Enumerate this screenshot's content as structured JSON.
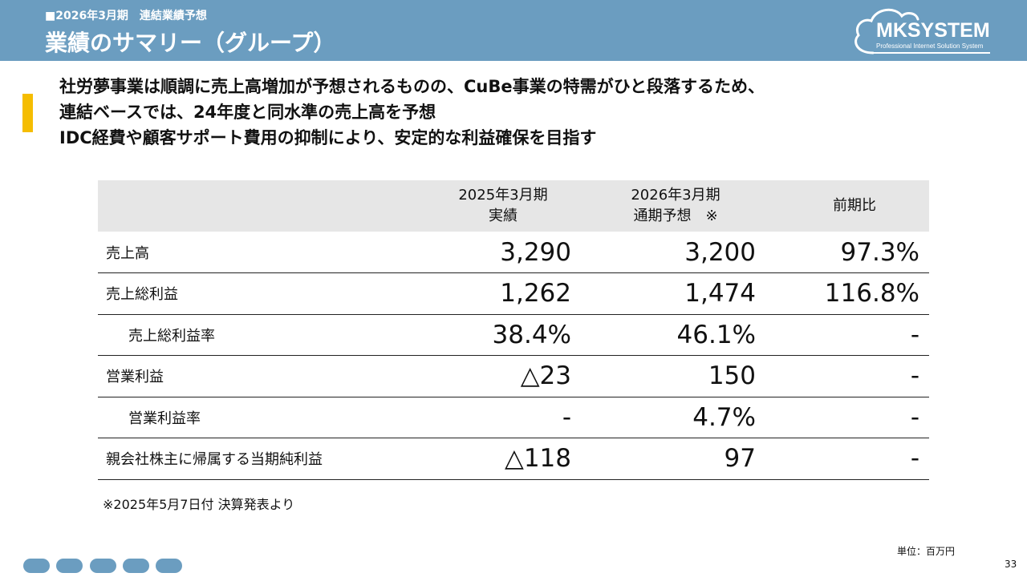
{
  "header": {
    "subtitle": "■2026年3月期　連結業績予想",
    "title": "業績のサマリー（グループ）"
  },
  "logo": {
    "brand": "MKSYSTEM",
    "tagline": "Professional Internet Solution System",
    "color": "#ffffff"
  },
  "lead": {
    "lines": [
      "社労夢事業は順調に売上高増加が予想されるものの、CuBe事業の特需がひと段落するため、",
      "連結ベースでは、24年度と同水準の売上高を予想",
      "IDC経費や顧客サポート費用の抑制により、安定的な利益確保を目指す"
    ]
  },
  "table": {
    "headers": [
      {
        "line1": "",
        "line2": ""
      },
      {
        "line1": "2025年3月期",
        "line2": "実績"
      },
      {
        "line1": "2026年3月期",
        "line2": "通期予想　※"
      },
      {
        "line1": "前期比",
        "line2": ""
      }
    ],
    "rows": [
      {
        "label": "売上高",
        "actual": "3,290",
        "forecast": "3,200",
        "ratio": "97.3%"
      },
      {
        "label": "売上総利益",
        "actual": "1,262",
        "forecast": "1,474",
        "ratio": "116.8%"
      },
      {
        "label": "売上総利益率",
        "actual": "38.4%",
        "forecast": "46.1%",
        "ratio": "-"
      },
      {
        "label": "営業利益",
        "actual": "△23",
        "forecast": "150",
        "ratio": "-"
      },
      {
        "label": "営業利益率",
        "actual": "-",
        "forecast": "4.7%",
        "ratio": "-"
      },
      {
        "label": "親会社株主に帰属する当期純利益",
        "actual": "△118",
        "forecast": "97",
        "ratio": "-"
      }
    ]
  },
  "footnote": "※2025年5月7日付 決算発表より",
  "unit": "単位：百万円",
  "page_number": "33",
  "colors": {
    "header_bg": "#6b9dc0",
    "accent": "#f5bd00",
    "table_header_bg": "#e6e6e6"
  }
}
